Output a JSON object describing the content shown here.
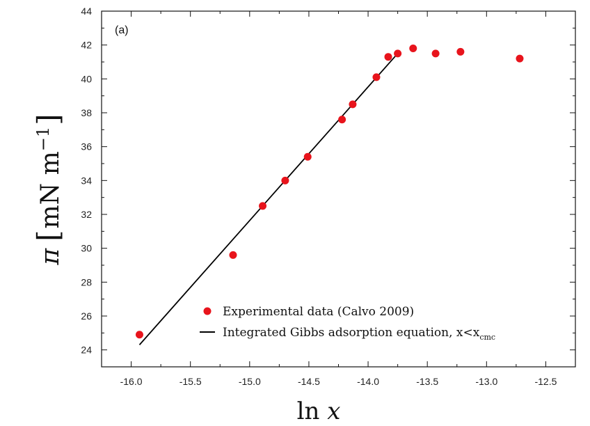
{
  "chart_data": {
    "type": "scatter",
    "panel_label": "(a)",
    "xlabel": "ln x",
    "ylabel": "π [mN m⁻¹]",
    "xlim": [
      -16.25,
      -12.25
    ],
    "ylim": [
      23,
      44
    ],
    "x_ticks": [
      -16.0,
      -15.5,
      -15.0,
      -14.5,
      -14.0,
      -13.5,
      -13.0,
      -12.5
    ],
    "x_tick_labels": [
      "-16.0",
      "-15.5",
      "-15.0",
      "-14.5",
      "-14.0",
      "-13.5",
      "-13.0",
      "-12.5"
    ],
    "y_ticks": [
      24,
      26,
      28,
      30,
      32,
      34,
      36,
      38,
      40,
      42,
      44
    ],
    "y_tick_labels": [
      "24",
      "26",
      "28",
      "30",
      "32",
      "34",
      "36",
      "38",
      "40",
      "42",
      "44"
    ],
    "grid": false,
    "legend_position": "bottom-right",
    "series": [
      {
        "name": "Experimental data (Calvo 2009)",
        "kind": "points",
        "color": "#e8141c",
        "x": [
          -15.93,
          -15.14,
          -14.89,
          -14.7,
          -14.51,
          -14.22,
          -14.13,
          -13.93,
          -13.83,
          -13.75,
          -13.62,
          -13.43,
          -13.22,
          -12.72
        ],
        "y": [
          24.9,
          29.6,
          32.5,
          34.0,
          35.4,
          37.6,
          38.5,
          40.1,
          41.3,
          41.5,
          41.8,
          41.5,
          41.6,
          41.2
        ]
      },
      {
        "name": "Integrated Gibbs adsorption equation, x<x",
        "name_subscript": "cmc",
        "kind": "line",
        "color": "#000000",
        "x": [
          -15.93,
          -13.75
        ],
        "y": [
          24.3,
          41.5
        ]
      }
    ]
  }
}
